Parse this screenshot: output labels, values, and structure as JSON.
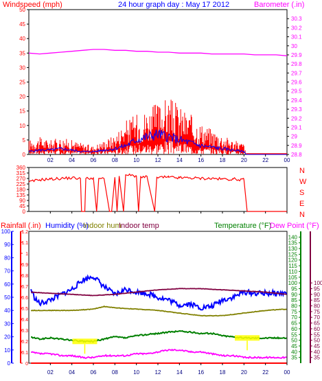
{
  "header": {
    "left_title": "Windspeed (mph)",
    "center_title": "24 hour graph day : May 17 2012",
    "right_title": "Barometer (.in)"
  },
  "lower_header": {
    "rainfall": "Rainfall (.in)",
    "humidity": "Humidity (%)",
    "indoor_hum": "Indoor hum",
    "indoor_temp": "Indoor temp",
    "temperature": "Temperature (°F)",
    "dew_point": "Dew Point (°F)"
  },
  "colors": {
    "background": "#ffffff",
    "frame": "#000000",
    "wind": "#ff0000",
    "wind_avg": "#0000ff",
    "barometer": "#ff00ff",
    "humidity": "#0000ff",
    "indoor_hum": "#808000",
    "indoor_temp": "#800040",
    "temperature": "#008000",
    "dew_point": "#ff00ff",
    "rain": "#ff0000",
    "marker": "#ffff00"
  },
  "hour_ticks": [
    "02",
    "04",
    "06",
    "08",
    "10",
    "12",
    "14",
    "16",
    "18",
    "20",
    "22",
    "00"
  ],
  "chart_data": [
    {
      "type": "line",
      "id": "wind",
      "ylim": [
        0,
        50
      ],
      "y_ticks": [
        0,
        5,
        10,
        15,
        20,
        25,
        30,
        35,
        40,
        45,
        50
      ],
      "right_ylim": [
        28.8,
        30.4
      ],
      "right_ticks": [
        "28.8",
        "28.9",
        "29",
        "29.1",
        "29.2",
        "29.3",
        "29.4",
        "29.5",
        "29.6",
        "29.7",
        "29.8",
        "29.9",
        "30",
        "30.1",
        "30.2",
        "30.3"
      ],
      "x_hours": [
        0,
        24
      ],
      "series": [
        {
          "id": "barometer",
          "axis": "right",
          "points": [
            [
              0,
              29.92
            ],
            [
              1,
              29.91
            ],
            [
              2,
              29.92
            ],
            [
              3,
              29.93
            ],
            [
              4,
              29.94
            ],
            [
              5,
              29.95
            ],
            [
              6,
              29.96
            ],
            [
              7,
              29.96
            ],
            [
              8,
              29.95
            ],
            [
              9,
              29.95
            ],
            [
              10,
              29.94
            ],
            [
              11,
              29.94
            ],
            [
              12,
              29.93
            ],
            [
              13,
              29.93
            ],
            [
              14,
              29.92
            ],
            [
              15,
              29.92
            ],
            [
              16,
              29.92
            ],
            [
              17,
              29.91
            ],
            [
              18,
              29.91
            ],
            [
              19,
              29.91
            ],
            [
              20,
              29.91
            ],
            [
              21,
              29.9
            ],
            [
              22,
              29.9
            ],
            [
              23,
              29.9
            ],
            [
              24,
              29.89
            ]
          ]
        },
        {
          "id": "gust_envelope",
          "axis": "left",
          "points": [
            [
              0,
              5
            ],
            [
              1,
              6
            ],
            [
              2,
              5
            ],
            [
              3,
              6
            ],
            [
              4,
              5
            ],
            [
              5,
              4
            ],
            [
              6,
              3
            ],
            [
              7,
              5
            ],
            [
              8,
              7
            ],
            [
              9,
              12
            ],
            [
              10,
              14
            ],
            [
              11,
              16
            ],
            [
              12,
              18
            ],
            [
              13,
              20
            ],
            [
              14,
              17
            ],
            [
              15,
              14
            ],
            [
              16,
              11
            ],
            [
              17,
              9
            ],
            [
              18,
              7
            ],
            [
              19,
              5
            ],
            [
              20,
              4
            ],
            [
              20.2,
              0
            ],
            [
              24,
              0
            ]
          ]
        },
        {
          "id": "wind_avg",
          "axis": "left",
          "points": [
            [
              0,
              1
            ],
            [
              1,
              1.5
            ],
            [
              2,
              1.5
            ],
            [
              3,
              2
            ],
            [
              4,
              1.5
            ],
            [
              5,
              1
            ],
            [
              6,
              1
            ],
            [
              7,
              1.5
            ],
            [
              8,
              2
            ],
            [
              9,
              3
            ],
            [
              10,
              5
            ],
            [
              11,
              6
            ],
            [
              12,
              7
            ],
            [
              13,
              6
            ],
            [
              14,
              5
            ],
            [
              15,
              4
            ],
            [
              16,
              3
            ],
            [
              17,
              2.5
            ],
            [
              18,
              2
            ],
            [
              19,
              1.5
            ],
            [
              20,
              1
            ],
            [
              20.2,
              0
            ],
            [
              24,
              0
            ]
          ]
        }
      ]
    },
    {
      "type": "line",
      "id": "direction",
      "ylim": [
        0,
        360
      ],
      "y_ticks": [
        0,
        45,
        90,
        135,
        180,
        225,
        270,
        315,
        360
      ],
      "compass": [
        "N",
        "W",
        "S",
        "E",
        "N"
      ],
      "series": [
        {
          "id": "wind_dir",
          "points": [
            [
              0,
              240
            ],
            [
              1,
              260
            ],
            [
              2,
              265
            ],
            [
              3,
              270
            ],
            [
              4,
              275
            ],
            [
              4.8,
              270
            ],
            [
              4.9,
              0
            ],
            [
              5.2,
              0
            ],
            [
              5.3,
              270
            ],
            [
              6,
              275
            ],
            [
              6.3,
              0
            ],
            [
              6.5,
              270
            ],
            [
              7,
              265
            ],
            [
              7.5,
              0
            ],
            [
              7.7,
              0
            ],
            [
              8,
              280
            ],
            [
              8.2,
              0
            ],
            [
              8.4,
              290
            ],
            [
              8.8,
              0
            ],
            [
              9,
              300
            ],
            [
              10,
              290
            ],
            [
              10.2,
              0
            ],
            [
              10.4,
              285
            ],
            [
              11,
              280
            ],
            [
              11.7,
              0
            ],
            [
              11.9,
              280
            ],
            [
              13,
              280
            ],
            [
              14,
              275
            ],
            [
              15,
              275
            ],
            [
              16,
              270
            ],
            [
              17,
              270
            ],
            [
              18,
              265
            ],
            [
              19,
              265
            ],
            [
              20,
              260
            ],
            [
              20.3,
              0
            ],
            [
              24,
              0
            ]
          ]
        }
      ]
    },
    {
      "type": "line",
      "id": "temperature_humidity",
      "humidity_ylim": [
        0,
        100
      ],
      "humidity_ticks": [
        0,
        10,
        20,
        30,
        40,
        50,
        60,
        70,
        80,
        90,
        100
      ],
      "rain_ylim": [
        0,
        1.2
      ],
      "rain_ticks": [
        "0",
        "0.1",
        "0.2",
        "0.3",
        "0.4",
        "0.5",
        "0.6",
        "0.7",
        "0.8",
        "0.9",
        "1",
        "1.1",
        "1.2"
      ],
      "temp_ylim": [
        30,
        145
      ],
      "temp_ticks": [
        35,
        40,
        45,
        50,
        55,
        60,
        65,
        70,
        75,
        80,
        85,
        90,
        95,
        100,
        105,
        110,
        115,
        120,
        125,
        130,
        135,
        140
      ],
      "dew_ylim": [
        30,
        100
      ],
      "dew_ticks": [
        35,
        40,
        45,
        50,
        55,
        60,
        65,
        70,
        75,
        80,
        85,
        90,
        95,
        100
      ],
      "series": [
        {
          "id": "humidity",
          "axis": "humidity",
          "points": [
            [
              0,
              60
            ],
            [
              0.5,
              50
            ],
            [
              1,
              45
            ],
            [
              2,
              48
            ],
            [
              3,
              52
            ],
            [
              4,
              56
            ],
            [
              5,
              63
            ],
            [
              6,
              66
            ],
            [
              7,
              58
            ],
            [
              8,
              52
            ],
            [
              9,
              56
            ],
            [
              10,
              54
            ],
            [
              11,
              53
            ],
            [
              12,
              50
            ],
            [
              13,
              48
            ],
            [
              14,
              44
            ],
            [
              15,
              45
            ],
            [
              16,
              42
            ],
            [
              17,
              43
            ],
            [
              18,
              48
            ],
            [
              19,
              50
            ],
            [
              20,
              54
            ],
            [
              21,
              53
            ],
            [
              22,
              53
            ],
            [
              23,
              53
            ],
            [
              24,
              53
            ]
          ]
        },
        {
          "id": "indoor_hum",
          "axis": "humidity",
          "points": [
            [
              0,
              40
            ],
            [
              2,
              40
            ],
            [
              4,
              40
            ],
            [
              6,
              41
            ],
            [
              7,
              43
            ],
            [
              8,
              42
            ],
            [
              10,
              41
            ],
            [
              12,
              40
            ],
            [
              14,
              38
            ],
            [
              16,
              36
            ],
            [
              18,
              36
            ],
            [
              20,
              38
            ],
            [
              22,
              40
            ],
            [
              24,
              41
            ]
          ]
        },
        {
          "id": "indoor_temp",
          "axis": "temp",
          "points": [
            [
              0,
              92
            ],
            [
              2,
              91
            ],
            [
              4,
              90
            ],
            [
              6,
              89
            ],
            [
              8,
              90
            ],
            [
              10,
              92
            ],
            [
              12,
              94
            ],
            [
              14,
              95
            ],
            [
              16,
              95
            ],
            [
              18,
              94
            ],
            [
              20,
              93
            ],
            [
              22,
              92
            ],
            [
              24,
              90
            ]
          ]
        },
        {
          "id": "temperature",
          "axis": "temp",
          "points": [
            [
              0,
              53
            ],
            [
              1,
              51
            ],
            [
              2,
              52
            ],
            [
              3,
              51
            ],
            [
              4,
              50
            ],
            [
              5,
              49
            ],
            [
              6,
              49
            ],
            [
              7,
              51
            ],
            [
              8,
              53
            ],
            [
              9,
              52
            ],
            [
              10,
              54
            ],
            [
              11,
              55
            ],
            [
              12,
              56
            ],
            [
              13,
              57
            ],
            [
              14,
              58
            ],
            [
              15,
              57
            ],
            [
              16,
              56
            ],
            [
              17,
              56
            ],
            [
              18,
              54
            ],
            [
              19,
              53
            ],
            [
              20,
              52
            ],
            [
              21,
              52
            ],
            [
              22,
              52
            ],
            [
              23,
              52
            ],
            [
              24,
              52
            ]
          ]
        },
        {
          "id": "dew_point",
          "axis": "dew",
          "points": [
            [
              0,
              36
            ],
            [
              1,
              35
            ],
            [
              2,
              35
            ],
            [
              3,
              34
            ],
            [
              4,
              34
            ],
            [
              5,
              33
            ],
            [
              6,
              33
            ],
            [
              7,
              34
            ],
            [
              8,
              34
            ],
            [
              9,
              34
            ],
            [
              10,
              35
            ],
            [
              11,
              35
            ],
            [
              12,
              36
            ],
            [
              13,
              37
            ],
            [
              14,
              37
            ],
            [
              15,
              36
            ],
            [
              16,
              36
            ],
            [
              17,
              35
            ],
            [
              18,
              34
            ],
            [
              19,
              34
            ],
            [
              20,
              33
            ],
            [
              21,
              33
            ],
            [
              22,
              33
            ],
            [
              23,
              33
            ],
            [
              24,
              33
            ]
          ]
        },
        {
          "id": "rain",
          "axis": "rain",
          "points": [
            [
              0,
              0
            ],
            [
              24,
              0
            ]
          ]
        }
      ],
      "markers": [
        {
          "hour": 5.2,
          "value": 49,
          "label": "low"
        },
        {
          "hour": 20.3,
          "value": 52,
          "label": "high"
        }
      ]
    }
  ]
}
